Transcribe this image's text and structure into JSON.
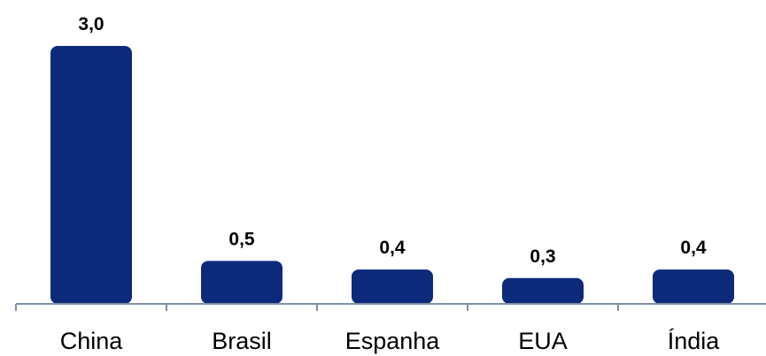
{
  "chart_data": {
    "type": "bar",
    "categories": [
      "China",
      "Brasil",
      "Espanha",
      "EUA",
      "Índia"
    ],
    "values": [
      3.0,
      0.5,
      0.4,
      0.3,
      0.4
    ],
    "value_labels": [
      "3,0",
      "0,5",
      "0,4",
      "0,3",
      "0,4"
    ],
    "title": "",
    "xlabel": "",
    "ylabel": "",
    "ylim": [
      0,
      3.0
    ],
    "grid": false,
    "legend": "none",
    "bar_color": "#0d2a7a",
    "axis_color": "#7f8fa6"
  }
}
